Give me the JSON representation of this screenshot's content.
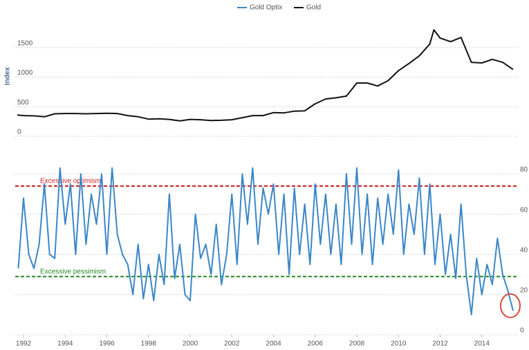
{
  "chart_data": [
    {
      "type": "line",
      "y_label": "Index",
      "x": [
        1991.7,
        1992,
        1992.5,
        1993,
        1993.5,
        1994,
        1994.5,
        1995,
        1995.5,
        1996,
        1996.5,
        1997,
        1997.5,
        1998,
        1998.5,
        1999,
        1999.5,
        2000,
        2000.5,
        2001,
        2001.5,
        2002,
        2002.5,
        2003,
        2003.5,
        2004,
        2004.5,
        2005,
        2005.5,
        2006,
        2006.5,
        2007,
        2007.5,
        2008,
        2008.5,
        2009,
        2009.5,
        2010,
        2010.5,
        2011,
        2011.5,
        2011.7,
        2012,
        2012.5,
        2013,
        2013.5,
        2014,
        2014.5,
        2015,
        2015.5
      ],
      "series": [
        {
          "name": "Gold",
          "color": "#111111",
          "values": [
            360,
            350,
            345,
            330,
            380,
            385,
            385,
            380,
            385,
            390,
            385,
            350,
            330,
            290,
            295,
            285,
            260,
            285,
            280,
            265,
            270,
            280,
            315,
            350,
            350,
            400,
            395,
            425,
            430,
            550,
            630,
            650,
            680,
            900,
            900,
            850,
            940,
            1110,
            1230,
            1360,
            1560,
            1800,
            1660,
            1600,
            1670,
            1250,
            1240,
            1300,
            1250,
            1130
          ]
        }
      ],
      "xlim": [
        1991.6,
        2015.7
      ],
      "ylim": [
        0,
        2000
      ],
      "yticks": [
        0,
        500,
        1000,
        1500
      ],
      "grid": true
    },
    {
      "type": "line",
      "x": [
        1991.75,
        1992,
        1992.25,
        1992.5,
        1992.75,
        1993,
        1993.25,
        1993.5,
        1993.75,
        1994,
        1994.25,
        1994.5,
        1994.75,
        1995,
        1995.25,
        1995.5,
        1995.75,
        1996,
        1996.25,
        1996.5,
        1996.75,
        1997,
        1997.25,
        1997.5,
        1997.75,
        1998,
        1998.25,
        1998.5,
        1998.75,
        1999,
        1999.25,
        1999.5,
        1999.75,
        2000,
        2000.25,
        2000.5,
        2000.75,
        2001,
        2001.25,
        2001.5,
        2001.75,
        2002,
        2002.25,
        2002.5,
        2002.75,
        2003,
        2003.25,
        2003.5,
        2003.75,
        2004,
        2004.25,
        2004.5,
        2004.75,
        2005,
        2005.25,
        2005.5,
        2005.75,
        2006,
        2006.25,
        2006.5,
        2006.75,
        2007,
        2007.25,
        2007.5,
        2007.75,
        2008,
        2008.25,
        2008.5,
        2008.75,
        2009,
        2009.25,
        2009.5,
        2009.75,
        2010,
        2010.25,
        2010.5,
        2010.75,
        2011,
        2011.25,
        2011.5,
        2011.75,
        2012,
        2012.25,
        2012.5,
        2012.75,
        2013,
        2013.25,
        2013.5,
        2013.75,
        2014,
        2014.25,
        2014.5,
        2014.75,
        2015,
        2015.25,
        2015.5
      ],
      "series": [
        {
          "name": "Gold Optix",
          "color": "#3a86c8",
          "values": [
            33,
            68,
            40,
            33,
            45,
            75,
            40,
            38,
            83,
            55,
            75,
            40,
            80,
            45,
            70,
            55,
            80,
            40,
            83,
            50,
            40,
            35,
            20,
            45,
            18,
            35,
            17,
            40,
            25,
            70,
            28,
            45,
            20,
            17,
            60,
            38,
            45,
            30,
            55,
            25,
            40,
            70,
            35,
            80,
            55,
            83,
            45,
            73,
            60,
            75,
            40,
            70,
            30,
            73,
            40,
            65,
            35,
            75,
            45,
            70,
            40,
            65,
            35,
            80,
            45,
            83,
            40,
            70,
            35,
            68,
            45,
            70,
            50,
            82,
            40,
            65,
            50,
            78,
            40,
            75,
            35,
            60,
            30,
            50,
            28,
            65,
            30,
            10,
            38,
            20,
            35,
            25,
            48,
            30,
            22,
            12
          ]
        }
      ],
      "reference_lines": [
        {
          "label": "Excessive optimism",
          "value": 74,
          "color": "#cc2222"
        },
        {
          "label": "Excessive pessimism",
          "value": 29,
          "color": "#228822"
        }
      ],
      "xlim": [
        1991.6,
        2015.7
      ],
      "ylim": [
        0,
        85
      ],
      "xticks": [
        1992,
        1994,
        1996,
        1998,
        2000,
        2002,
        2004,
        2006,
        2008,
        2010,
        2012,
        2014
      ],
      "yticks": [
        0,
        20,
        40,
        60,
        80
      ],
      "grid": true
    }
  ]
}
